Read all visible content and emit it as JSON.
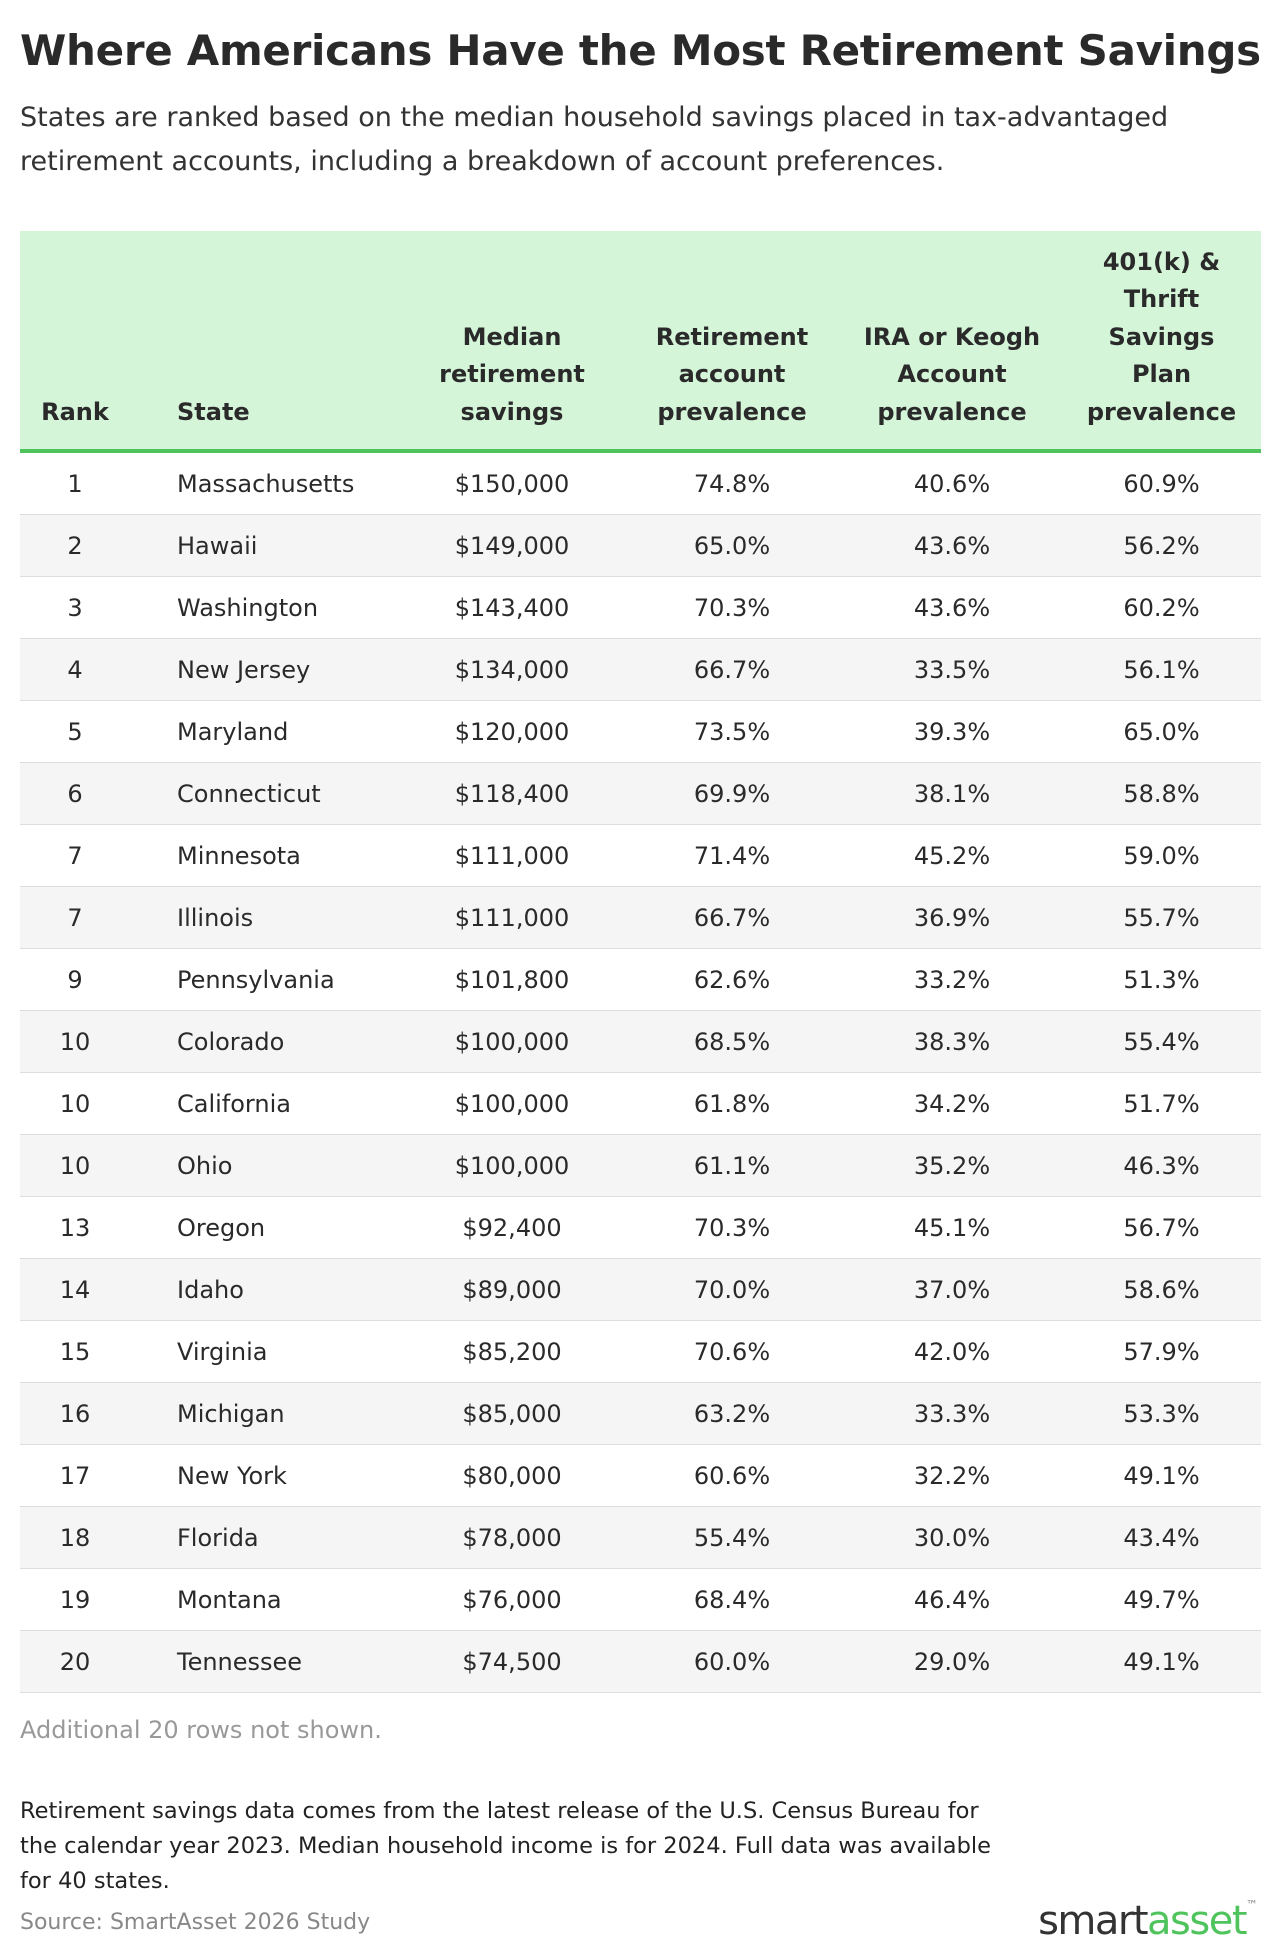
{
  "header": {
    "title": "Where Americans Have the Most Retirement Savings",
    "subtitle": "States are ranked based on the median household savings placed in tax-advantaged retirement accounts, including a breakdown of account preferences."
  },
  "table": {
    "columns": [
      "Rank",
      "State",
      "Median retirement savings",
      "Retirement account prevalence",
      "IRA or Keogh Account prevalence",
      "401(k) & Thrift Savings Plan prevalence"
    ],
    "rows": [
      [
        "1",
        "Massachusetts",
        "$150,000",
        "74.8%",
        "40.6%",
        "60.9%"
      ],
      [
        "2",
        "Hawaii",
        "$149,000",
        "65.0%",
        "43.6%",
        "56.2%"
      ],
      [
        "3",
        "Washington",
        "$143,400",
        "70.3%",
        "43.6%",
        "60.2%"
      ],
      [
        "4",
        "New Jersey",
        "$134,000",
        "66.7%",
        "33.5%",
        "56.1%"
      ],
      [
        "5",
        "Maryland",
        "$120,000",
        "73.5%",
        "39.3%",
        "65.0%"
      ],
      [
        "6",
        "Connecticut",
        "$118,400",
        "69.9%",
        "38.1%",
        "58.8%"
      ],
      [
        "7",
        "Minnesota",
        "$111,000",
        "71.4%",
        "45.2%",
        "59.0%"
      ],
      [
        "7",
        "Illinois",
        "$111,000",
        "66.7%",
        "36.9%",
        "55.7%"
      ],
      [
        "9",
        "Pennsylvania",
        "$101,800",
        "62.6%",
        "33.2%",
        "51.3%"
      ],
      [
        "10",
        "Colorado",
        "$100,000",
        "68.5%",
        "38.3%",
        "55.4%"
      ],
      [
        "10",
        "California",
        "$100,000",
        "61.8%",
        "34.2%",
        "51.7%"
      ],
      [
        "10",
        "Ohio",
        "$100,000",
        "61.1%",
        "35.2%",
        "46.3%"
      ],
      [
        "13",
        "Oregon",
        "$92,400",
        "70.3%",
        "45.1%",
        "56.7%"
      ],
      [
        "14",
        "Idaho",
        "$89,000",
        "70.0%",
        "37.0%",
        "58.6%"
      ],
      [
        "15",
        "Virginia",
        "$85,200",
        "70.6%",
        "42.0%",
        "57.9%"
      ],
      [
        "16",
        "Michigan",
        "$85,000",
        "63.2%",
        "33.3%",
        "53.3%"
      ],
      [
        "17",
        "New York",
        "$80,000",
        "60.6%",
        "32.2%",
        "49.1%"
      ],
      [
        "18",
        "Florida",
        "$78,000",
        "55.4%",
        "30.0%",
        "43.4%"
      ],
      [
        "19",
        "Montana",
        "$76,000",
        "68.4%",
        "46.4%",
        "49.7%"
      ],
      [
        "20",
        "Tennessee",
        "$74,500",
        "60.0%",
        "29.0%",
        "49.1%"
      ]
    ],
    "more_rows_note": "Additional 20 rows not shown."
  },
  "footer": {
    "note": "Retirement savings data comes from the latest release of the U.S. Census Bureau for the calendar year 2023. Median household income is for 2024. Full data was available for 40 states.",
    "source": "Source: SmartAsset 2026 Study",
    "logo": [
      "smart",
      "asset",
      "™"
    ]
  }
}
